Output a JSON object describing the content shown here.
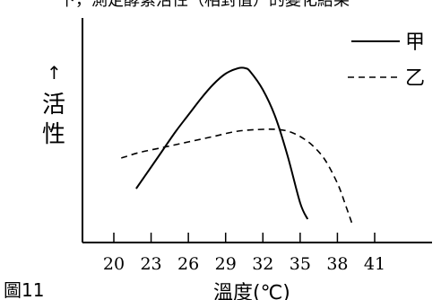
{
  "chart_data": {
    "type": "line",
    "top_text": "下，測定酵素活性（相對值）的變化結果",
    "figure_label": "圖11",
    "xlabel": "溫度(℃)",
    "ylabel": "活性",
    "y_arrow": "↑",
    "x_ticks": [
      "20",
      "23",
      "26",
      "29",
      "32",
      "35",
      "38",
      "41"
    ],
    "xlim": [
      18,
      45
    ],
    "ylim": [
      0,
      100
    ],
    "y_ticks_shown": false,
    "grid": false,
    "legend_position": "top-right",
    "series": [
      {
        "name": "甲",
        "style": "solid",
        "color": "#000000",
        "x": [
          21.8,
          23,
          24,
          25,
          26,
          27,
          28,
          29,
          30,
          30.6,
          31,
          32,
          33,
          34,
          35,
          35.6
        ],
        "y": [
          30,
          42,
          52,
          62,
          71,
          80,
          88,
          94,
          97,
          97,
          95,
          85,
          70,
          48,
          22,
          13
        ]
      },
      {
        "name": "乙",
        "style": "dashed",
        "color": "#000000",
        "x": [
          20.6,
          22,
          24,
          26,
          28,
          30,
          32,
          33,
          34,
          35,
          36,
          37,
          38,
          38.6,
          39.2
        ],
        "y": [
          47,
          50,
          53,
          56,
          59,
          62,
          63,
          63,
          62,
          59,
          54,
          46,
          33,
          22,
          10
        ]
      }
    ]
  }
}
